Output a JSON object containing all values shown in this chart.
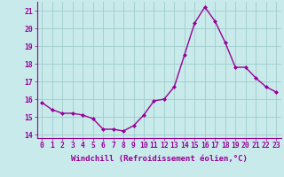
{
  "x": [
    0,
    1,
    2,
    3,
    4,
    5,
    6,
    7,
    8,
    9,
    10,
    11,
    12,
    13,
    14,
    15,
    16,
    17,
    18,
    19,
    20,
    21,
    22,
    23
  ],
  "y": [
    15.8,
    15.4,
    15.2,
    15.2,
    15.1,
    14.9,
    14.3,
    14.3,
    14.2,
    14.5,
    15.1,
    15.9,
    16.0,
    16.7,
    18.5,
    20.3,
    21.2,
    20.4,
    19.2,
    17.8,
    17.8,
    17.2,
    16.7,
    16.4
  ],
  "line_color": "#990099",
  "marker": "D",
  "marker_size": 2,
  "xlabel": "Windchill (Refroidissement éolien,°C)",
  "xlabel_fontsize": 6.5,
  "ylim": [
    13.8,
    21.5
  ],
  "xlim": [
    -0.5,
    23.5
  ],
  "yticks": [
    14,
    15,
    16,
    17,
    18,
    19,
    20,
    21
  ],
  "xticks": [
    0,
    1,
    2,
    3,
    4,
    5,
    6,
    7,
    8,
    9,
    10,
    11,
    12,
    13,
    14,
    15,
    16,
    17,
    18,
    19,
    20,
    21,
    22,
    23
  ],
  "bg_color": "#c8eaea",
  "grid_color": "#a0cccc",
  "tick_fontsize": 5.8,
  "line_width": 1.0,
  "spine_color": "#888888"
}
